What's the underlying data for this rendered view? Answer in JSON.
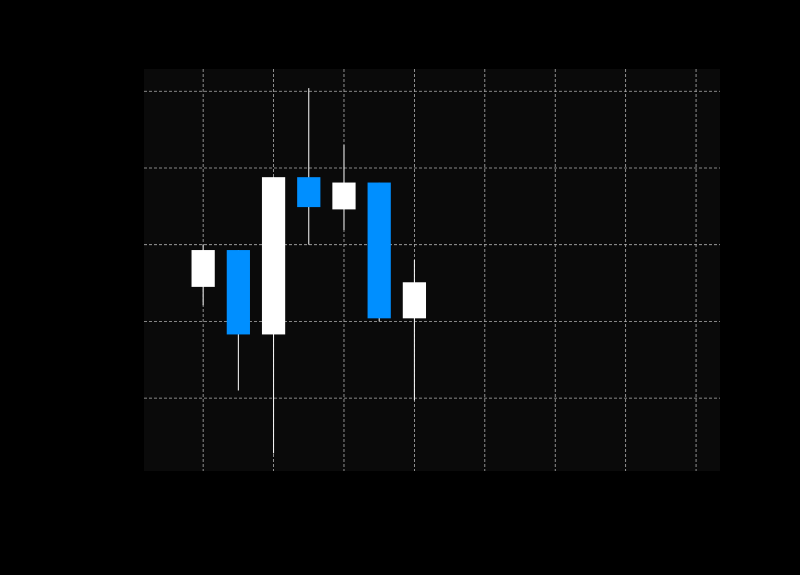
{
  "chart_data": {
    "type": "candlestick",
    "x": [
      1,
      1.5,
      2,
      2.5,
      3,
      3.5,
      4
    ],
    "open": [
      2.45,
      2.93,
      1.83,
      3.88,
      3.46,
      3.81,
      2.04
    ],
    "high": [
      3.0,
      2.93,
      3.88,
      5.04,
      4.3,
      3.81,
      2.8
    ],
    "low": [
      2.21,
      1.1,
      0.28,
      3.0,
      3.19,
      2.0,
      0.97
    ],
    "close": [
      2.93,
      1.83,
      3.88,
      3.49,
      3.81,
      2.04,
      2.51
    ],
    "up_color": "#ffffff",
    "down_color": "#008fff",
    "xlim": [
      0.16,
      8.34
    ],
    "xticks": [
      1,
      2,
      3,
      4,
      5,
      6,
      7,
      8
    ],
    "ylim": [
      0.05,
      5.29
    ],
    "yticks": [
      1,
      2,
      3,
      4,
      5
    ],
    "grid": true
  }
}
